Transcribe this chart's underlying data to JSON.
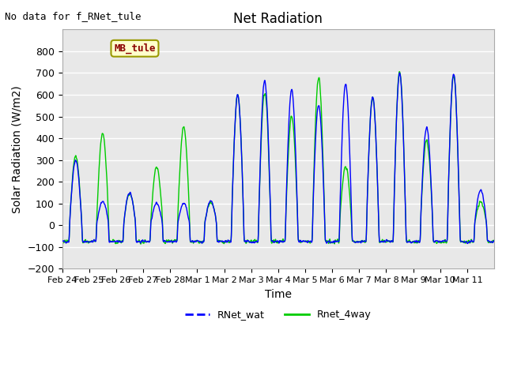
{
  "title": "Net Radiation",
  "xlabel": "Time",
  "ylabel": "Solar Radiation (W/m2)",
  "no_data_text": "No data for f_RNet_tule",
  "legend_label_text": "MB_tule",
  "series_labels": [
    "RNet_wat",
    "Rnet_4way"
  ],
  "series_colors": [
    "blue",
    "#00cc00"
  ],
  "ylim": [
    -200,
    900
  ],
  "yticks": [
    -200,
    -100,
    0,
    100,
    200,
    300,
    400,
    500,
    600,
    700,
    800
  ],
  "xtick_labels": [
    "Feb 24",
    "Feb 25",
    "Feb 26",
    "Feb 27",
    "Feb 28",
    "Mar 1",
    "Mar 2",
    "Mar 3",
    "Mar 4",
    "Mar 5",
    "Mar 6",
    "Mar 7",
    "Mar 8",
    "Mar 9",
    "Mar 10",
    "Mar 11"
  ],
  "plot_bg_color": "#e8e8e8",
  "grid_color": "white",
  "line_width": 1.0,
  "blue_peaks": [
    300,
    110,
    150,
    100,
    100,
    110,
    600,
    665,
    625,
    555,
    650,
    590,
    700,
    450,
    695,
    160
  ],
  "green_peaks": [
    320,
    425,
    150,
    270,
    450,
    105,
    600,
    610,
    500,
    680,
    270,
    590,
    710,
    390,
    690,
    110
  ]
}
